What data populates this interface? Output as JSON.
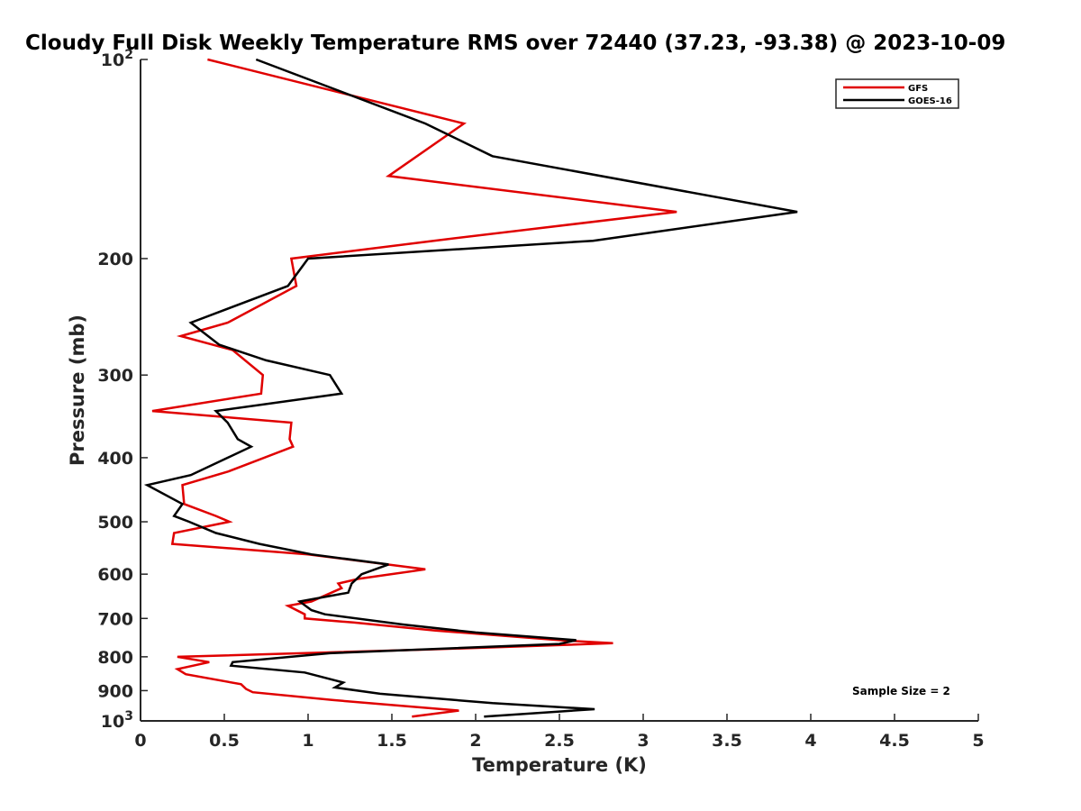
{
  "chart_data": {
    "type": "line",
    "title": "Cloudy Full Disk Weekly Temperature RMS over 72440 (37.23, -93.38) @ 2023-10-09",
    "xlabel": "Temperature (K)",
    "ylabel": "Pressure (mb)",
    "xlim": [
      0,
      5
    ],
    "ylim": [
      100,
      1000
    ],
    "y_scale": "log",
    "y_reversed": true,
    "grid": false,
    "legend_position": "top-right",
    "x_ticks": [
      {
        "value": 0,
        "label": "0"
      },
      {
        "value": 0.5,
        "label": "0.5"
      },
      {
        "value": 1,
        "label": "1"
      },
      {
        "value": 1.5,
        "label": "1.5"
      },
      {
        "value": 2,
        "label": "2"
      },
      {
        "value": 2.5,
        "label": "2.5"
      },
      {
        "value": 3,
        "label": "3"
      },
      {
        "value": 3.5,
        "label": "3.5"
      },
      {
        "value": 4,
        "label": "4"
      },
      {
        "value": 4.5,
        "label": "4.5"
      },
      {
        "value": 5,
        "label": "5"
      }
    ],
    "y_ticks": [
      {
        "value": 100,
        "label": "10",
        "sup": "2"
      },
      {
        "value": 200,
        "label": "200",
        "sup": ""
      },
      {
        "value": 300,
        "label": "300",
        "sup": ""
      },
      {
        "value": 400,
        "label": "400",
        "sup": ""
      },
      {
        "value": 500,
        "label": "500",
        "sup": ""
      },
      {
        "value": 600,
        "label": "600",
        "sup": ""
      },
      {
        "value": 700,
        "label": "700",
        "sup": ""
      },
      {
        "value": 800,
        "label": "800",
        "sup": ""
      },
      {
        "value": 900,
        "label": "900",
        "sup": ""
      },
      {
        "value": 1000,
        "label": "10",
        "sup": "3"
      }
    ],
    "series": [
      {
        "name": "GFS",
        "color": "#e00000",
        "points": [
          [
            0.4,
            100
          ],
          [
            1.93,
            125
          ],
          [
            1.48,
            150
          ],
          [
            3.2,
            170
          ],
          [
            1.75,
            188
          ],
          [
            0.9,
            200
          ],
          [
            0.93,
            220
          ],
          [
            0.52,
            250
          ],
          [
            0.24,
            262
          ],
          [
            0.55,
            275
          ],
          [
            0.73,
            300
          ],
          [
            0.72,
            320
          ],
          [
            0.07,
            340
          ],
          [
            0.9,
            354
          ],
          [
            0.89,
            375
          ],
          [
            0.91,
            385
          ],
          [
            0.52,
            420
          ],
          [
            0.25,
            440
          ],
          [
            0.26,
            470
          ],
          [
            0.45,
            490
          ],
          [
            0.53,
            500
          ],
          [
            0.2,
            520
          ],
          [
            0.19,
            540
          ],
          [
            1.0,
            560
          ],
          [
            1.7,
            590
          ],
          [
            1.3,
            610
          ],
          [
            1.18,
            620
          ],
          [
            1.2,
            630
          ],
          [
            1.02,
            660
          ],
          [
            0.88,
            670
          ],
          [
            0.98,
            690
          ],
          [
            0.98,
            700
          ],
          [
            1.27,
            710
          ],
          [
            1.76,
            730
          ],
          [
            2.5,
            755
          ],
          [
            2.82,
            763
          ],
          [
            1.72,
            780
          ],
          [
            0.22,
            800
          ],
          [
            0.41,
            815
          ],
          [
            0.22,
            835
          ],
          [
            0.27,
            850
          ],
          [
            0.6,
            880
          ],
          [
            0.63,
            895
          ],
          [
            0.67,
            905
          ],
          [
            1.15,
            930
          ],
          [
            1.8,
            960
          ],
          [
            1.9,
            965
          ],
          [
            1.62,
            985
          ]
        ]
      },
      {
        "name": "GOES-16",
        "color": "#000000",
        "points": [
          [
            0.69,
            100
          ],
          [
            1.7,
            125
          ],
          [
            2.1,
            140
          ],
          [
            3.92,
            170
          ],
          [
            2.7,
            188
          ],
          [
            1.0,
            200
          ],
          [
            0.88,
            220
          ],
          [
            0.3,
            250
          ],
          [
            0.47,
            270
          ],
          [
            0.75,
            285
          ],
          [
            1.13,
            300
          ],
          [
            1.2,
            320
          ],
          [
            0.45,
            340
          ],
          [
            0.52,
            354
          ],
          [
            0.58,
            375
          ],
          [
            0.66,
            385
          ],
          [
            0.3,
            425
          ],
          [
            0.04,
            440
          ],
          [
            0.25,
            470
          ],
          [
            0.2,
            490
          ],
          [
            0.29,
            500
          ],
          [
            0.45,
            520
          ],
          [
            0.71,
            540
          ],
          [
            1.02,
            560
          ],
          [
            1.48,
            580
          ],
          [
            1.32,
            600
          ],
          [
            1.26,
            620
          ],
          [
            1.24,
            640
          ],
          [
            0.95,
            660
          ],
          [
            1.02,
            680
          ],
          [
            1.1,
            690
          ],
          [
            1.57,
            715
          ],
          [
            2.0,
            735
          ],
          [
            2.6,
            755
          ],
          [
            2.5,
            765
          ],
          [
            1.13,
            790
          ],
          [
            0.55,
            815
          ],
          [
            0.54,
            825
          ],
          [
            0.98,
            845
          ],
          [
            1.21,
            875
          ],
          [
            1.16,
            890
          ],
          [
            1.43,
            910
          ],
          [
            2.1,
            940
          ],
          [
            2.71,
            960
          ],
          [
            2.05,
            985
          ]
        ]
      }
    ],
    "annotations": [
      {
        "text": "Sample Size = 2"
      }
    ]
  }
}
